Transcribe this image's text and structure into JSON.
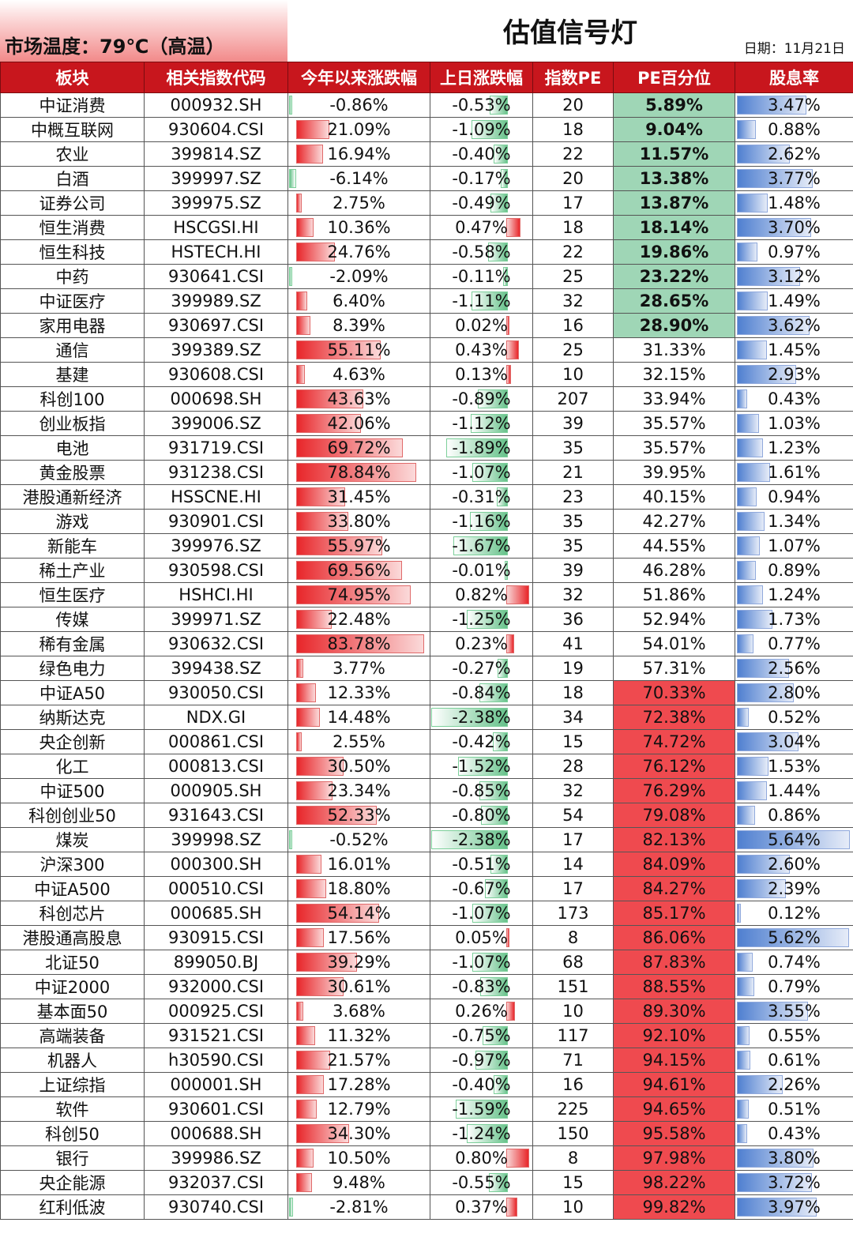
{
  "header": {
    "temperature": "市场温度：79℃（高温）",
    "title": "估值信号灯",
    "date": "日期：11月21日"
  },
  "columns": [
    "板块",
    "相关指数代码",
    "今年以来涨跌幅",
    "上日涨跌幅",
    "指数PE",
    "PE百分位",
    "股息率"
  ],
  "colors": {
    "header_bg": "#c8161d",
    "pe_low": "#9fd6b6",
    "pe_high": "#ef4a4f",
    "bar_red": "#e8262a",
    "bar_green": "#66c28a",
    "bar_blue": "#4f7fd0"
  },
  "rows": [
    [
      "中证消费",
      "000932.SH",
      "-0.86%",
      "-0.53%",
      "20",
      "5.89%",
      "3.47%"
    ],
    [
      "中概互联网",
      "930604.CSI",
      "21.09%",
      "-1.09%",
      "18",
      "9.04%",
      "0.88%"
    ],
    [
      "农业",
      "399814.SZ",
      "16.94%",
      "-0.40%",
      "22",
      "11.57%",
      "2.62%"
    ],
    [
      "白酒",
      "399997.SZ",
      "-6.14%",
      "-0.17%",
      "20",
      "13.38%",
      "3.77%"
    ],
    [
      "证券公司",
      "399975.SZ",
      "2.75%",
      "-0.49%",
      "17",
      "13.87%",
      "1.48%"
    ],
    [
      "恒生消费",
      "HSCGSI.HI",
      "10.36%",
      "0.47%",
      "18",
      "18.14%",
      "3.70%"
    ],
    [
      "恒生科技",
      "HSTECH.HI",
      "24.76%",
      "-0.58%",
      "22",
      "19.86%",
      "0.97%"
    ],
    [
      "中药",
      "930641.CSI",
      "-2.09%",
      "-0.11%",
      "25",
      "23.22%",
      "3.12%"
    ],
    [
      "中证医疗",
      "399989.SZ",
      "6.40%",
      "-1.11%",
      "32",
      "28.65%",
      "1.49%"
    ],
    [
      "家用电器",
      "930697.CSI",
      "8.39%",
      "0.02%",
      "16",
      "28.90%",
      "3.62%"
    ],
    [
      "通信",
      "399389.SZ",
      "55.11%",
      "0.43%",
      "25",
      "31.33%",
      "1.45%"
    ],
    [
      "基建",
      "930608.CSI",
      "4.63%",
      "0.13%",
      "10",
      "32.15%",
      "2.93%"
    ],
    [
      "科创100",
      "000698.SH",
      "43.63%",
      "-0.89%",
      "207",
      "33.94%",
      "0.43%"
    ],
    [
      "创业板指",
      "399006.SZ",
      "42.06%",
      "-1.12%",
      "39",
      "35.57%",
      "1.03%"
    ],
    [
      "电池",
      "931719.CSI",
      "69.72%",
      "-1.89%",
      "35",
      "35.57%",
      "1.23%"
    ],
    [
      "黄金股票",
      "931238.CSI",
      "78.84%",
      "-1.07%",
      "21",
      "39.95%",
      "1.61%"
    ],
    [
      "港股通新经济",
      "HSSCNE.HI",
      "31.45%",
      "-0.31%",
      "23",
      "40.15%",
      "0.94%"
    ],
    [
      "游戏",
      "930901.CSI",
      "33.80%",
      "-1.16%",
      "35",
      "42.27%",
      "1.34%"
    ],
    [
      "新能车",
      "399976.SZ",
      "55.97%",
      "-1.67%",
      "35",
      "44.55%",
      "1.07%"
    ],
    [
      "稀土产业",
      "930598.CSI",
      "69.56%",
      "-0.01%",
      "39",
      "46.28%",
      "0.89%"
    ],
    [
      "恒生医疗",
      "HSHCI.HI",
      "74.95%",
      "0.82%",
      "32",
      "51.86%",
      "1.24%"
    ],
    [
      "传媒",
      "399971.SZ",
      "22.48%",
      "-1.25%",
      "36",
      "52.94%",
      "1.73%"
    ],
    [
      "稀有金属",
      "930632.CSI",
      "83.78%",
      "0.23%",
      "41",
      "54.01%",
      "0.77%"
    ],
    [
      "绿色电力",
      "399438.SZ",
      "3.77%",
      "-0.27%",
      "19",
      "57.31%",
      "2.56%"
    ],
    [
      "中证A50",
      "930050.CSI",
      "12.33%",
      "-0.84%",
      "18",
      "70.33%",
      "2.80%"
    ],
    [
      "纳斯达克",
      "NDX.GI",
      "14.48%",
      "-2.38%",
      "34",
      "72.38%",
      "0.52%"
    ],
    [
      "央企创新",
      "000861.CSI",
      "2.55%",
      "-0.42%",
      "15",
      "74.72%",
      "3.04%"
    ],
    [
      "化工",
      "000813.CSI",
      "30.50%",
      "-1.52%",
      "28",
      "76.12%",
      "1.53%"
    ],
    [
      "中证500",
      "000905.SH",
      "23.34%",
      "-0.85%",
      "32",
      "76.29%",
      "1.44%"
    ],
    [
      "科创创业50",
      "931643.CSI",
      "52.33%",
      "-0.80%",
      "54",
      "79.08%",
      "0.86%"
    ],
    [
      "煤炭",
      "399998.SZ",
      "-0.52%",
      "-2.38%",
      "17",
      "82.13%",
      "5.64%"
    ],
    [
      "沪深300",
      "000300.SH",
      "16.01%",
      "-0.51%",
      "14",
      "84.09%",
      "2.60%"
    ],
    [
      "中证A500",
      "000510.CSI",
      "18.80%",
      "-0.67%",
      "17",
      "84.27%",
      "2.39%"
    ],
    [
      "科创芯片",
      "000685.SH",
      "54.14%",
      "-1.07%",
      "173",
      "85.17%",
      "0.12%"
    ],
    [
      "港股通高股息",
      "930915.CSI",
      "17.56%",
      "0.05%",
      "8",
      "86.06%",
      "5.62%"
    ],
    [
      "北证50",
      "899050.BJ",
      "39.29%",
      "-1.07%",
      "68",
      "87.83%",
      "0.74%"
    ],
    [
      "中证2000",
      "932000.CSI",
      "30.61%",
      "-0.83%",
      "151",
      "88.55%",
      "0.79%"
    ],
    [
      "基本面50",
      "000925.CSI",
      "3.68%",
      "0.26%",
      "10",
      "89.30%",
      "3.55%"
    ],
    [
      "高端装备",
      "931521.CSI",
      "11.32%",
      "-0.75%",
      "117",
      "92.10%",
      "0.55%"
    ],
    [
      "机器人",
      "h30590.CSI",
      "21.57%",
      "-0.97%",
      "71",
      "94.15%",
      "0.61%"
    ],
    [
      "上证综指",
      "000001.SH",
      "17.28%",
      "-0.40%",
      "16",
      "94.61%",
      "2.26%"
    ],
    [
      "软件",
      "930601.CSI",
      "12.79%",
      "-1.59%",
      "225",
      "94.65%",
      "0.51%"
    ],
    [
      "科创50",
      "000688.SH",
      "34.30%",
      "-1.24%",
      "150",
      "95.58%",
      "0.43%"
    ],
    [
      "银行",
      "399986.SZ",
      "10.50%",
      "0.80%",
      "8",
      "97.98%",
      "3.80%"
    ],
    [
      "央企能源",
      "932037.CSI",
      "9.48%",
      "-0.55%",
      "15",
      "98.22%",
      "3.72%"
    ],
    [
      "红利低波",
      "930740.CSI",
      "-2.81%",
      "0.37%",
      "10",
      "99.82%",
      "3.97%"
    ]
  ]
}
